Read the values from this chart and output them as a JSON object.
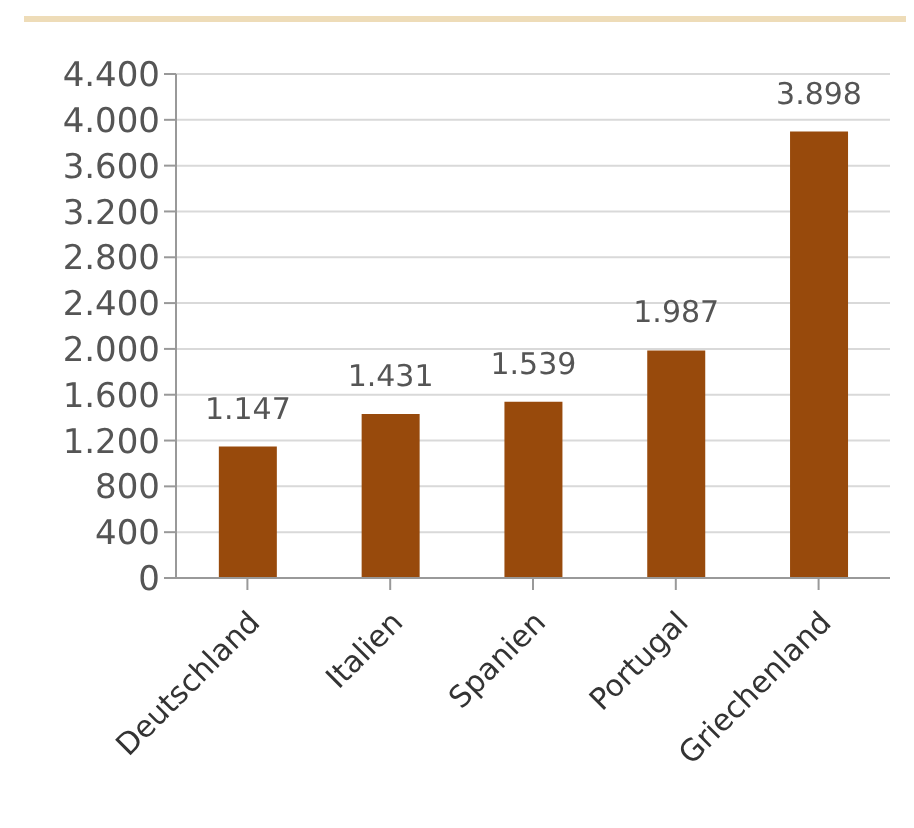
{
  "chart_data": {
    "type": "bar",
    "categories": [
      "Deutschland",
      "Italien",
      "Spanien",
      "Portugal",
      "Griechenland"
    ],
    "values": [
      1147,
      1431,
      1539,
      1987,
      3898
    ],
    "value_labels": [
      "1.147",
      "1.431",
      "1.539",
      "1.987",
      "3.898"
    ],
    "color": "#984a0c",
    "ylim": [
      0,
      4400
    ],
    "yticks": [
      0,
      {
        "value": 400,
        "label": "400"
      },
      {
        "value": 800,
        "label": "800"
      },
      {
        "value": 1200,
        "label": "1.200"
      },
      {
        "value": 1600,
        "label": "1.600"
      },
      {
        "value": 2000,
        "label": "2.000"
      },
      {
        "value": 2400,
        "label": "2.400"
      },
      {
        "value": 2800,
        "label": "2.800"
      },
      {
        "value": 3200,
        "label": "3.200"
      },
      {
        "value": 3600,
        "label": "3.600"
      },
      {
        "value": 4000,
        "label": "4.000"
      },
      {
        "value": 4400,
        "label": "4.400"
      }
    ],
    "grid": "y",
    "legend": false
  }
}
